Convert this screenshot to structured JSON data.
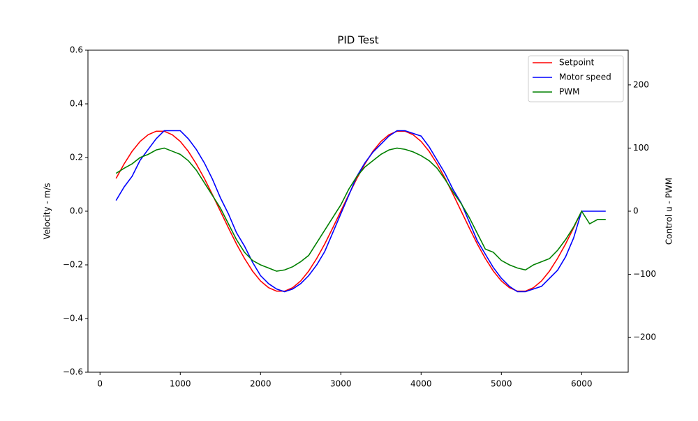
{
  "chart_data": {
    "type": "line",
    "title": "PID Test",
    "y_label": "Velocity - m/s",
    "y2_label": "Control u - PWM",
    "x": [
      200,
      300,
      400,
      500,
      600,
      700,
      800,
      900,
      1000,
      1100,
      1200,
      1300,
      1400,
      1500,
      1600,
      1700,
      1800,
      1900,
      2000,
      2100,
      2200,
      2300,
      2400,
      2500,
      2600,
      2700,
      2800,
      2900,
      3000,
      3100,
      3200,
      3300,
      3400,
      3500,
      3600,
      3700,
      3800,
      3900,
      4000,
      4100,
      4200,
      4300,
      4400,
      4500,
      4600,
      4700,
      4800,
      4900,
      5000,
      5100,
      5200,
      5300,
      5400,
      5500,
      5600,
      5700,
      5800,
      5900,
      6000,
      6100,
      6200,
      6300
    ],
    "series": [
      {
        "name": "Setpoint",
        "color": "#ff0000",
        "values": [
          0.122,
          0.176,
          0.223,
          0.26,
          0.285,
          0.298,
          0.298,
          0.285,
          0.26,
          0.223,
          0.176,
          0.122,
          0.062,
          0,
          -0.062,
          -0.122,
          -0.176,
          -0.223,
          -0.26,
          -0.285,
          -0.298,
          -0.298,
          -0.285,
          -0.26,
          -0.223,
          -0.176,
          -0.122,
          -0.062,
          0,
          0.062,
          0.122,
          0.176,
          0.223,
          0.26,
          0.285,
          0.298,
          0.298,
          0.285,
          0.26,
          0.223,
          0.176,
          0.122,
          0.062,
          0,
          -0.062,
          -0.122,
          -0.176,
          -0.223,
          -0.26,
          -0.285,
          -0.298,
          -0.298,
          -0.285,
          -0.26,
          -0.223,
          -0.176,
          -0.122,
          -0.062,
          0,
          null,
          null,
          null
        ]
      },
      {
        "name": "Motor speed",
        "color": "#0000ff",
        "values": [
          0.04,
          0.09,
          0.13,
          0.19,
          0.23,
          0.27,
          0.3,
          0.3,
          0.3,
          0.27,
          0.23,
          0.18,
          0.12,
          0.05,
          -0.01,
          -0.08,
          -0.13,
          -0.19,
          -0.24,
          -0.27,
          -0.29,
          -0.3,
          -0.29,
          -0.27,
          -0.24,
          -0.2,
          -0.15,
          -0.08,
          -0.01,
          0.06,
          0.13,
          0.18,
          0.22,
          0.25,
          0.28,
          0.3,
          0.3,
          0.29,
          0.28,
          0.24,
          0.19,
          0.14,
          0.08,
          0.03,
          -0.04,
          -0.11,
          -0.16,
          -0.21,
          -0.25,
          -0.28,
          -0.3,
          -0.3,
          -0.29,
          -0.28,
          -0.25,
          -0.22,
          -0.17,
          -0.1,
          0,
          0,
          0,
          0
        ]
      },
      {
        "name": "PWM",
        "color": "#008000",
        "axis": "y2",
        "values": [
          60,
          68,
          75,
          85,
          90,
          97,
          100,
          95,
          90,
          80,
          65,
          45,
          25,
          5,
          -20,
          -45,
          -65,
          -78,
          -85,
          -90,
          -95,
          -93,
          -88,
          -80,
          -70,
          -50,
          -30,
          -10,
          10,
          35,
          55,
          70,
          80,
          90,
          97,
          100,
          98,
          94,
          88,
          80,
          68,
          50,
          30,
          12,
          -10,
          -35,
          -60,
          -65,
          -78,
          -85,
          -90,
          -93,
          -85,
          -80,
          -75,
          -62,
          -45,
          -25,
          0,
          -20,
          -13,
          -13
        ]
      }
    ],
    "xlim": [
      -150,
      6580
    ],
    "xticks": [
      0,
      1000,
      2000,
      3000,
      4000,
      5000,
      6000
    ],
    "ylim": [
      -0.6,
      0.6
    ],
    "yticks": [
      {
        "value": -0.6,
        "label": "−0.6"
      },
      {
        "value": -0.4,
        "label": "−0.4"
      },
      {
        "value": -0.2,
        "label": "−0.2"
      },
      {
        "value": 0,
        "label": "0.0"
      },
      0.2,
      0.4,
      0.6
    ],
    "y2lim": [
      -255,
      255
    ],
    "y2ticks": [
      {
        "value": -200,
        "label": "−200"
      },
      {
        "value": -100,
        "label": "−100"
      },
      0,
      100,
      200
    ],
    "legend": "upper right"
  }
}
